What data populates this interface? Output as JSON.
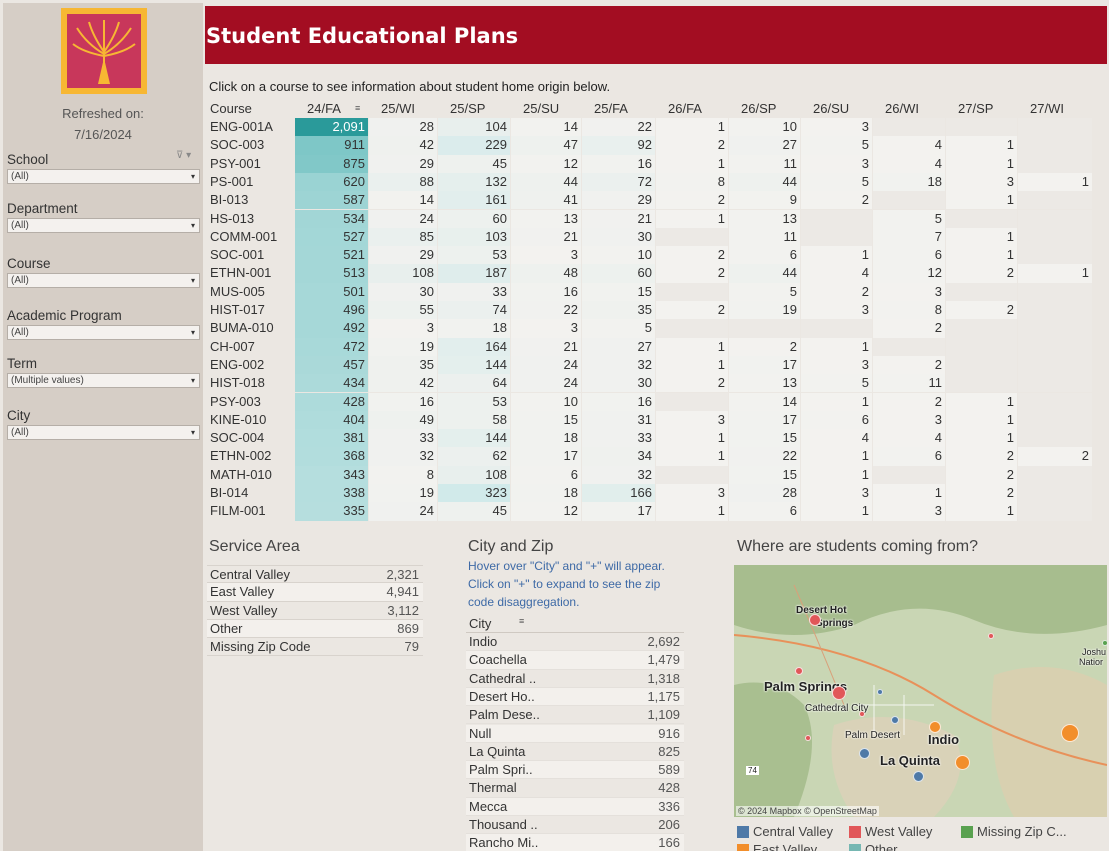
{
  "sidebar": {
    "refreshed_label": "Refreshed on:",
    "refreshed_date": "7/16/2024",
    "filters": [
      {
        "title": "School",
        "value": "(All)"
      },
      {
        "title": "Department",
        "value": "(All)"
      },
      {
        "title": "Course",
        "value": "(All)"
      },
      {
        "title": "Academic Program",
        "value": "(All)"
      },
      {
        "title": "Term",
        "value": "(Multiple values)"
      },
      {
        "title": "City",
        "value": "(All)"
      }
    ]
  },
  "header": {
    "title": "Student Educational Plans",
    "instruction": "Click on a course to see information about student home origin below."
  },
  "table": {
    "course_header": "Course",
    "terms": [
      "24/FA",
      "25/WI",
      "25/SP",
      "25/SU",
      "25/FA",
      "26/FA",
      "26/SP",
      "26/SU",
      "26/WI",
      "27/SP",
      "27/WI"
    ],
    "rows": [
      [
        "ENG-001A",
        "2,091",
        "28",
        "104",
        "14",
        "22",
        "1",
        "10",
        "3",
        "",
        "",
        ""
      ],
      [
        "SOC-003",
        "911",
        "42",
        "229",
        "47",
        "92",
        "2",
        "27",
        "5",
        "4",
        "1",
        ""
      ],
      [
        "PSY-001",
        "875",
        "29",
        "45",
        "12",
        "16",
        "1",
        "11",
        "3",
        "4",
        "1",
        ""
      ],
      [
        "PS-001",
        "620",
        "88",
        "132",
        "44",
        "72",
        "8",
        "44",
        "5",
        "18",
        "3",
        "1"
      ],
      [
        "BI-013",
        "587",
        "14",
        "161",
        "41",
        "29",
        "2",
        "9",
        "2",
        "",
        "1",
        ""
      ],
      [
        "HS-013",
        "534",
        "24",
        "60",
        "13",
        "21",
        "1",
        "13",
        "",
        "5",
        "",
        ""
      ],
      [
        "COMM-001",
        "527",
        "85",
        "103",
        "21",
        "30",
        "",
        "11",
        "",
        "7",
        "1",
        ""
      ],
      [
        "SOC-001",
        "521",
        "29",
        "53",
        "3",
        "10",
        "2",
        "6",
        "1",
        "6",
        "1",
        ""
      ],
      [
        "ETHN-001",
        "513",
        "108",
        "187",
        "48",
        "60",
        "2",
        "44",
        "4",
        "12",
        "2",
        "1"
      ],
      [
        "MUS-005",
        "501",
        "30",
        "33",
        "16",
        "15",
        "",
        "5",
        "2",
        "3",
        "",
        ""
      ],
      [
        "HIST-017",
        "496",
        "55",
        "74",
        "22",
        "35",
        "2",
        "19",
        "3",
        "8",
        "2",
        ""
      ],
      [
        "BUMA-010",
        "492",
        "3",
        "18",
        "3",
        "5",
        "",
        "",
        "",
        "2",
        "",
        ""
      ],
      [
        "CH-007",
        "472",
        "19",
        "164",
        "21",
        "27",
        "1",
        "2",
        "1",
        "",
        "",
        ""
      ],
      [
        "ENG-002",
        "457",
        "35",
        "144",
        "24",
        "32",
        "1",
        "17",
        "3",
        "2",
        "",
        ""
      ],
      [
        "HIST-018",
        "434",
        "42",
        "64",
        "24",
        "30",
        "2",
        "13",
        "5",
        "11",
        "",
        ""
      ],
      [
        "PSY-003",
        "428",
        "16",
        "53",
        "10",
        "16",
        "",
        "14",
        "1",
        "2",
        "1",
        ""
      ],
      [
        "KINE-010",
        "404",
        "49",
        "58",
        "15",
        "31",
        "3",
        "17",
        "6",
        "3",
        "1",
        ""
      ],
      [
        "SOC-004",
        "381",
        "33",
        "144",
        "18",
        "33",
        "1",
        "15",
        "4",
        "4",
        "1",
        ""
      ],
      [
        "ETHN-002",
        "368",
        "32",
        "62",
        "17",
        "34",
        "1",
        "22",
        "1",
        "6",
        "2",
        "2"
      ],
      [
        "MATH-010",
        "343",
        "8",
        "108",
        "6",
        "32",
        "",
        "15",
        "1",
        "",
        "2",
        ""
      ],
      [
        "BI-014",
        "338",
        "19",
        "323",
        "18",
        "166",
        "3",
        "28",
        "3",
        "1",
        "2",
        ""
      ],
      [
        "FILM-001",
        "335",
        "24",
        "45",
        "12",
        "17",
        "1",
        "6",
        "1",
        "3",
        "1",
        ""
      ]
    ]
  },
  "service_area": {
    "title": "Service Area",
    "rows": [
      {
        "name": "Central Valley",
        "value": "2,321"
      },
      {
        "name": "East Valley",
        "value": "4,941"
      },
      {
        "name": "West Valley",
        "value": "3,112"
      },
      {
        "name": "Other",
        "value": "869"
      },
      {
        "name": "Missing Zip Code",
        "value": "79"
      }
    ]
  },
  "city_zip": {
    "title": "City and Zip",
    "note_lines": [
      "Hover over \"City\" and \"+\" will appear.",
      "Click on \"+\" to expand to see the zip",
      "code disaggregation."
    ],
    "column_header": "City",
    "rows": [
      {
        "name": "Indio",
        "value": "2,692"
      },
      {
        "name": "Coachella",
        "value": "1,479"
      },
      {
        "name": "Cathedral ..",
        "value": "1,318"
      },
      {
        "name": "Desert Ho..",
        "value": "1,175"
      },
      {
        "name": "Palm Dese..",
        "value": "1,109"
      },
      {
        "name": "Null",
        "value": "916"
      },
      {
        "name": "La Quinta",
        "value": "825"
      },
      {
        "name": "Palm Spri..",
        "value": "589"
      },
      {
        "name": "Thermal",
        "value": "428"
      },
      {
        "name": "Mecca",
        "value": "336"
      },
      {
        "name": "Thousand ..",
        "value": "206"
      },
      {
        "name": "Rancho Mi..",
        "value": "166"
      }
    ]
  },
  "map": {
    "title": "Where are students coming from?",
    "attribution": "© 2024 Mapbox © OpenStreetMap",
    "labels": [
      "Desert Hot",
      "Springs",
      "Palm Springs",
      "Cathedral City",
      "Palm Desert",
      "Indio",
      "La Quinta",
      "Joshu",
      "Natior",
      "74"
    ],
    "legend": [
      {
        "name": "Central Valley",
        "color": "#4e79a7"
      },
      {
        "name": "West Valley",
        "color": "#e15759"
      },
      {
        "name": "Missing Zip C...",
        "color": "#59a14f"
      },
      {
        "name": "East Valley",
        "color": "#f28e2b"
      },
      {
        "name": "Other",
        "color": "#76b7b2"
      }
    ]
  },
  "colors": {
    "header_bg": "#a30d22",
    "highlight": "#2a9a9a",
    "link_note": "#3e6aa6"
  }
}
